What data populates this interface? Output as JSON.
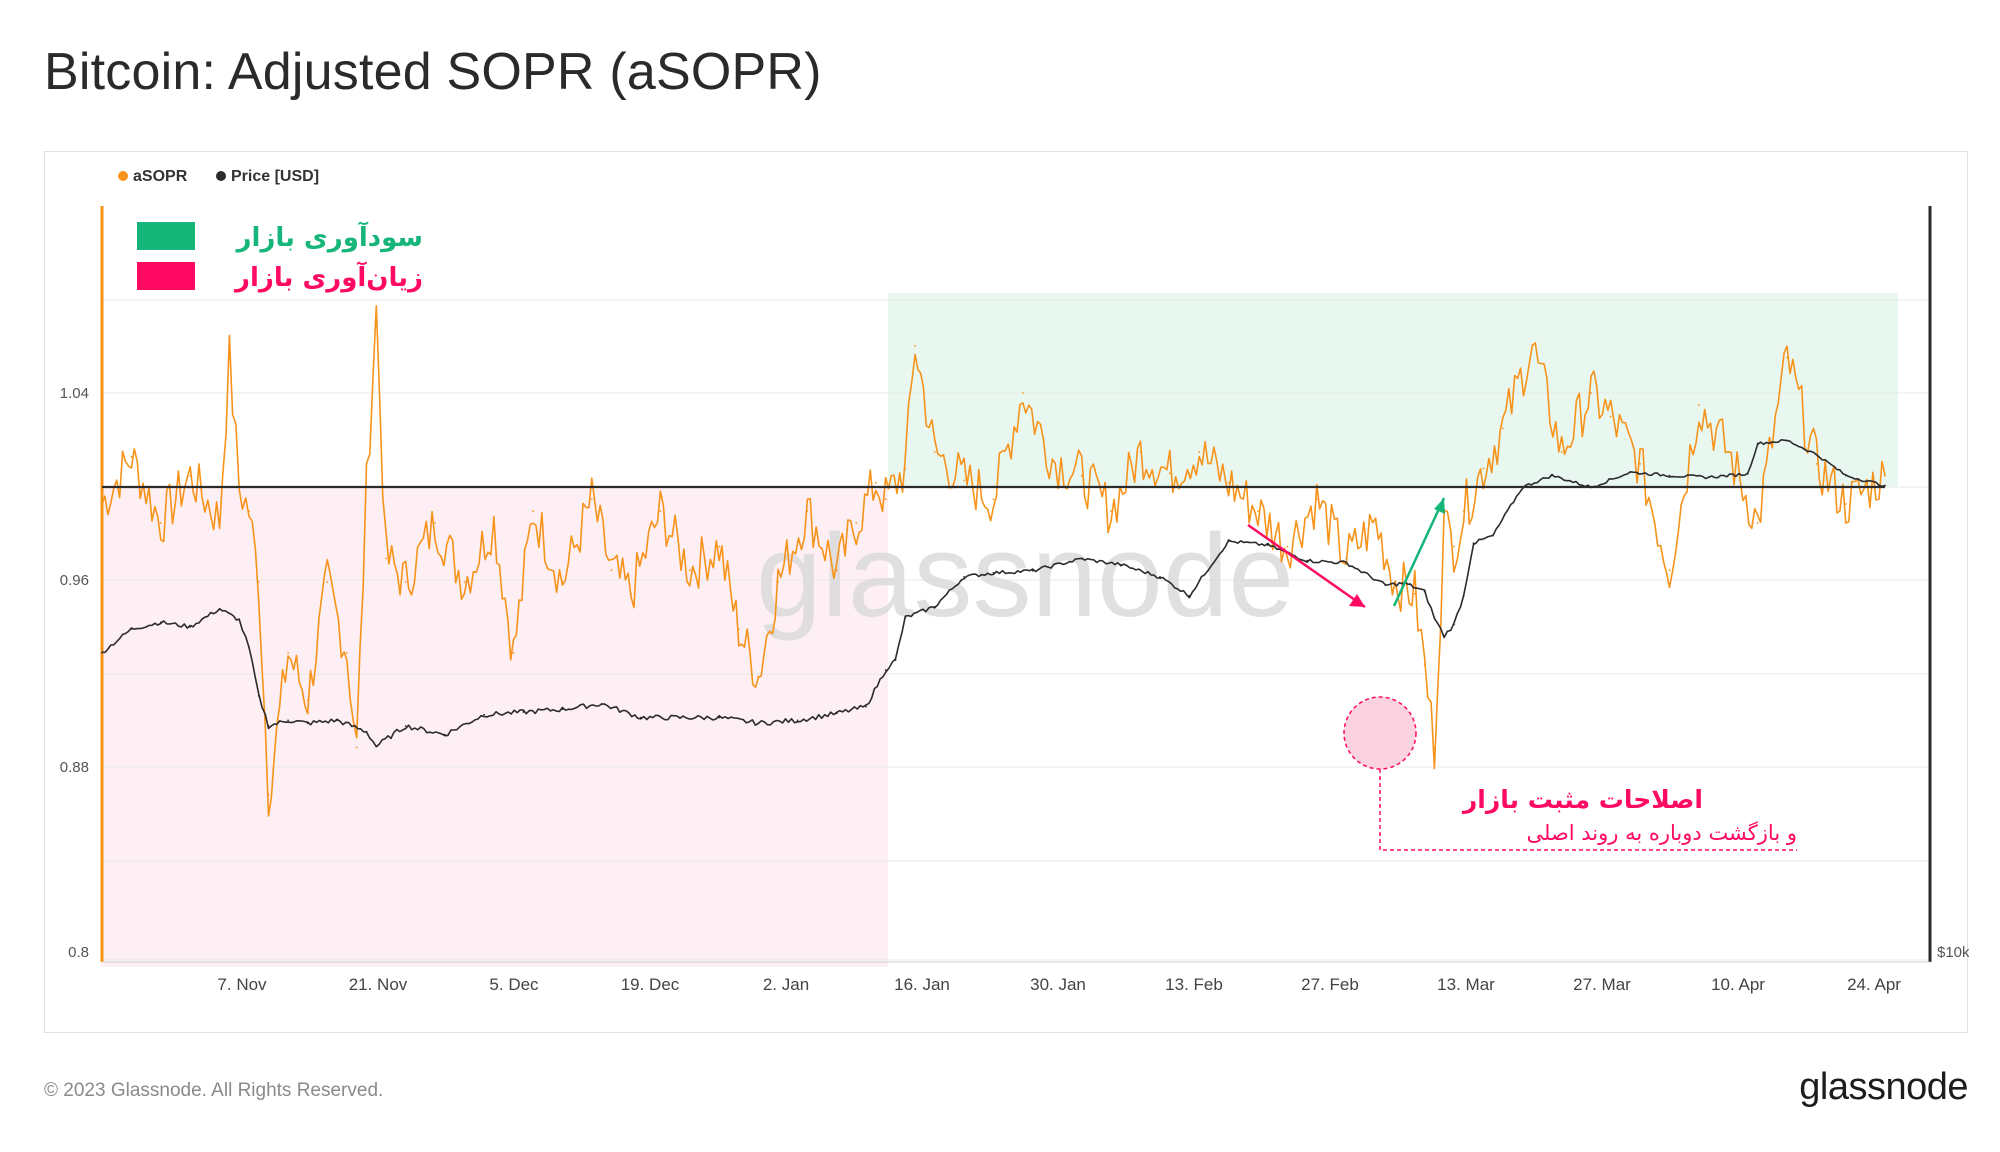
{
  "title": "Bitcoin: Adjusted SOPR (aSOPR)",
  "footer": {
    "copyright": "© 2023 Glassnode. All Rights Reserved.",
    "brand": "glassnode"
  },
  "watermark": "glassnode",
  "annotations": {
    "profit_zone_label": "سودآوری بازار",
    "loss_zone_label": "زیان‌آوری بازار",
    "correction_title": "اصلاحات مثبت بازار",
    "correction_subtitle": "و بازگشت دوباره به روند اصلی"
  },
  "colors": {
    "asopr": "#f7931a",
    "price": "#2b2b2b",
    "profit_zone": "#e9f7f1",
    "loss_zone": "#fdeff3",
    "profit_legend": "#16b57a",
    "loss_legend": "#ff0a62",
    "baseline": "#2b2b2b"
  },
  "chart_data": {
    "type": "line",
    "legend": [
      "aSOPR",
      "Price [USD]"
    ],
    "legend_position": "top-left",
    "x_ticks": [
      "7. Nov",
      "21. Nov",
      "5. Dec",
      "19. Dec",
      "2. Jan",
      "16. Jan",
      "30. Jan",
      "13. Feb",
      "27. Feb",
      "13. Mar",
      "27. Mar",
      "10. Apr",
      "24. Apr"
    ],
    "y_ticks": [
      "0.8",
      "0.88",
      "0.96",
      "1.04"
    ],
    "y_right_ticks": [
      "$10k"
    ],
    "ylim": [
      0.8,
      1.1
    ],
    "baseline": 1.0,
    "grid": true,
    "series": [
      {
        "name": "aSOPR",
        "axis": "left",
        "x": [
          "2022-10-24",
          "2022-10-27",
          "2022-10-30",
          "2022-11-02",
          "2022-11-05",
          "2022-11-06",
          "2022-11-07",
          "2022-11-08",
          "2022-11-09",
          "2022-11-10",
          "2022-11-12",
          "2022-11-14",
          "2022-11-16",
          "2022-11-18",
          "2022-11-19",
          "2022-11-20",
          "2022-11-21",
          "2022-11-22",
          "2022-11-24",
          "2022-11-27",
          "2022-11-30",
          "2022-12-03",
          "2022-12-05",
          "2022-12-07",
          "2022-12-10",
          "2022-12-13",
          "2022-12-15",
          "2022-12-17",
          "2022-12-20",
          "2022-12-23",
          "2022-12-26",
          "2022-12-28",
          "2022-12-30",
          "2023-01-01",
          "2023-01-04",
          "2023-01-07",
          "2023-01-09",
          "2023-01-11",
          "2023-01-12",
          "2023-01-14",
          "2023-01-15",
          "2023-01-17",
          "2023-01-20",
          "2023-01-23",
          "2023-01-26",
          "2023-01-29",
          "2023-02-01",
          "2023-02-04",
          "2023-02-07",
          "2023-02-10",
          "2023-02-13",
          "2023-02-16",
          "2023-02-19",
          "2023-02-22",
          "2023-02-25",
          "2023-02-28",
          "2023-03-03",
          "2023-03-05",
          "2023-03-07",
          "2023-03-08",
          "2023-03-09",
          "2023-03-10",
          "2023-03-11",
          "2023-03-12",
          "2023-03-14",
          "2023-03-16",
          "2023-03-19",
          "2023-03-22",
          "2023-03-25",
          "2023-03-27",
          "2023-03-30",
          "2023-04-02",
          "2023-04-05",
          "2023-04-08",
          "2023-04-11",
          "2023-04-14",
          "2023-04-17",
          "2023-04-20",
          "2023-04-24"
        ],
        "values": [
          0.993,
          1.013,
          0.985,
          1.005,
          0.986,
          1.055,
          1.0,
          0.99,
          0.96,
          0.87,
          0.93,
          0.91,
          0.96,
          0.93,
          0.89,
          1.0,
          1.075,
          0.97,
          0.96,
          0.985,
          0.96,
          0.985,
          0.93,
          0.99,
          0.96,
          0.995,
          0.965,
          0.955,
          0.99,
          0.965,
          0.975,
          0.94,
          0.92,
          0.96,
          0.99,
          0.965,
          0.985,
          1.002,
          0.995,
          1.008,
          1.06,
          1.015,
          1.003,
          0.995,
          1.04,
          1.012,
          1.005,
          0.99,
          1.015,
          1.006,
          1.015,
          1.002,
          0.99,
          0.975,
          0.995,
          0.97,
          0.985,
          0.96,
          0.955,
          0.925,
          0.89,
          0.985,
          0.975,
          0.99,
          1.008,
          1.025,
          1.06,
          1.015,
          1.04,
          1.03,
          1.01,
          0.965,
          1.035,
          1.015,
          0.985,
          1.055,
          1.01,
          0.993,
          1.005
        ]
      },
      {
        "name": "Price [USD]",
        "axis": "right",
        "x": [
          "2022-10-24",
          "2022-10-27",
          "2022-10-30",
          "2022-11-02",
          "2022-11-05",
          "2022-11-07",
          "2022-11-08",
          "2022-11-09",
          "2022-11-10",
          "2022-11-12",
          "2022-11-14",
          "2022-11-17",
          "2022-11-20",
          "2022-11-21",
          "2022-11-24",
          "2022-11-28",
          "2022-12-02",
          "2022-12-06",
          "2022-12-10",
          "2022-12-14",
          "2022-12-18",
          "2022-12-22",
          "2022-12-26",
          "2022-12-30",
          "2023-01-03",
          "2023-01-07",
          "2023-01-10",
          "2023-01-12",
          "2023-01-13",
          "2023-01-14",
          "2023-01-17",
          "2023-01-20",
          "2023-01-23",
          "2023-01-27",
          "2023-02-01",
          "2023-02-05",
          "2023-02-09",
          "2023-02-12",
          "2023-02-16",
          "2023-02-20",
          "2023-02-24",
          "2023-02-28",
          "2023-03-04",
          "2023-03-06",
          "2023-03-08",
          "2023-03-09",
          "2023-03-10",
          "2023-03-11",
          "2023-03-12",
          "2023-03-13",
          "2023-03-15",
          "2023-03-18",
          "2023-03-21",
          "2023-03-25",
          "2023-03-29",
          "2023-04-02",
          "2023-04-06",
          "2023-04-10",
          "2023-04-11",
          "2023-04-14",
          "2023-04-17",
          "2023-04-20",
          "2023-04-24"
        ],
        "values": [
          19300,
          20300,
          20600,
          20400,
          21200,
          20700,
          19500,
          17600,
          16500,
          16700,
          16600,
          16700,
          16300,
          15800,
          16500,
          16200,
          16900,
          17000,
          17100,
          17300,
          16800,
          16800,
          16800,
          16600,
          16700,
          16950,
          17200,
          18600,
          19000,
          20800,
          21300,
          22700,
          22900,
          23000,
          23600,
          23300,
          22700,
          21800,
          24500,
          24300,
          23500,
          23400,
          22300,
          22400,
          22000,
          20800,
          20000,
          20500,
          21800,
          24400,
          24800,
          27500,
          28200,
          27500,
          28400,
          28200,
          28100,
          28300,
          30200,
          30400,
          29500,
          28200,
          27600
        ]
      }
    ]
  }
}
